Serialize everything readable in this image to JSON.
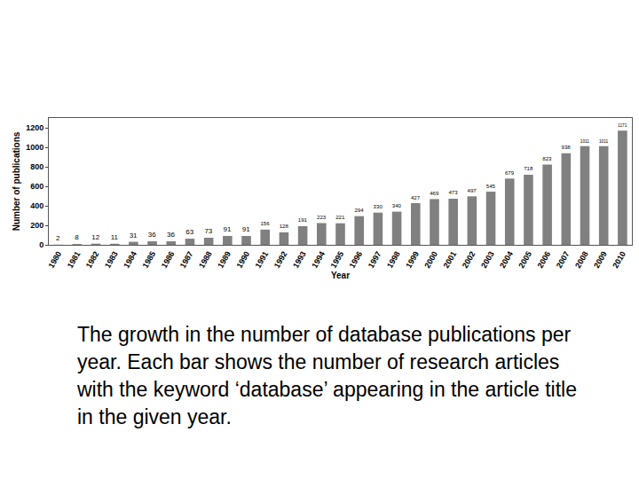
{
  "chart_data": {
    "type": "bar",
    "xlabel": "Year",
    "ylabel": "Number of publications",
    "categories": [
      "1980",
      "1981",
      "1982",
      "1983",
      "1984",
      "1985",
      "1986",
      "1987",
      "1988",
      "1989",
      "1990",
      "1991",
      "1992",
      "1993",
      "1994",
      "1995",
      "1996",
      "1997",
      "1998",
      "1999",
      "2000",
      "2001",
      "2002",
      "2003",
      "2004",
      "2005",
      "2006",
      "2007",
      "2008",
      "2009",
      "2010"
    ],
    "values": [
      2,
      8,
      12,
      11,
      31,
      36,
      36,
      63,
      73,
      91,
      91,
      156,
      128,
      191,
      223,
      221,
      294,
      330,
      340,
      427,
      469,
      473,
      497,
      545,
      679,
      718,
      823,
      938,
      1011,
      1011,
      1171
    ],
    "color": "#808080",
    "ylim": [
      0,
      1300
    ],
    "yticks": [
      0,
      200,
      400,
      600,
      800,
      1000,
      1200
    ],
    "data_labels": true,
    "grid": false,
    "annotations": [
      "The growth in the number of database publications per year. Each bar shows the number of research articles with the keyword ‘database’ appearing in the article title in the given year."
    ]
  }
}
